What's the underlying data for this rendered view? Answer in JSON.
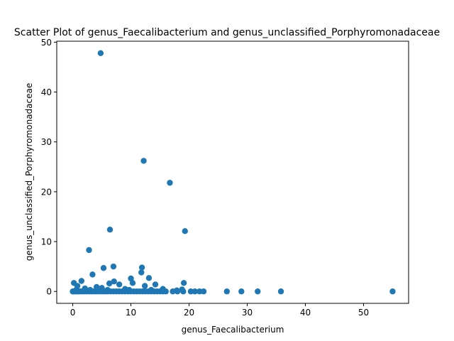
{
  "chart_data": {
    "type": "scatter",
    "title": "Scatter Plot of genus_Faecalibacterium and genus_unclassified_Porphyromonadaceae",
    "xlabel": "genus_Faecalibacterium",
    "ylabel": "genus_unclassified_Porphyromonadaceae",
    "xlim": [
      -2.75,
      57.75
    ],
    "ylim": [
      -2.39,
      50.2
    ],
    "xticks": [
      0,
      10,
      20,
      30,
      40,
      50
    ],
    "yticks": [
      0,
      10,
      20,
      30,
      40,
      50
    ],
    "grid": false,
    "marker_color": "#1f77b4",
    "points": [
      [
        4.8,
        47.8
      ],
      [
        12.2,
        26.2
      ],
      [
        16.7,
        21.8
      ],
      [
        6.4,
        12.4
      ],
      [
        19.3,
        12.1
      ],
      [
        2.8,
        8.3
      ],
      [
        7.0,
        5.0
      ],
      [
        5.3,
        4.7
      ],
      [
        11.9,
        4.8
      ],
      [
        11.8,
        3.8
      ],
      [
        3.4,
        3.4
      ],
      [
        10.0,
        2.6
      ],
      [
        13.1,
        2.7
      ],
      [
        1.5,
        2.1
      ],
      [
        7.1,
        2.0
      ],
      [
        0.2,
        1.7
      ],
      [
        10.3,
        1.7
      ],
      [
        19.1,
        1.7
      ],
      [
        6.3,
        1.6
      ],
      [
        8.0,
        1.4
      ],
      [
        14.2,
        1.4
      ],
      [
        0.8,
        1.1
      ],
      [
        4.1,
        0.9
      ],
      [
        12.4,
        1.1
      ],
      [
        2.1,
        0.6
      ],
      [
        5.0,
        0.7
      ],
      [
        9.0,
        0.5
      ],
      [
        15.5,
        0.5
      ],
      [
        18.8,
        0.4
      ],
      [
        0.6,
        0.3
      ],
      [
        3.0,
        0.3
      ],
      [
        6.0,
        0.3
      ],
      [
        9.7,
        0.3
      ],
      [
        13.5,
        0.3
      ],
      [
        17.9,
        0.2
      ],
      [
        0.0,
        0.0
      ],
      [
        0.1,
        0.0
      ],
      [
        0.3,
        0.0
      ],
      [
        0.5,
        0.0
      ],
      [
        0.8,
        0.0
      ],
      [
        1.0,
        0.0
      ],
      [
        1.3,
        0.0
      ],
      [
        1.6,
        0.0
      ],
      [
        2.0,
        0.0
      ],
      [
        2.4,
        0.0
      ],
      [
        2.8,
        0.0
      ],
      [
        3.2,
        0.0
      ],
      [
        3.6,
        0.0
      ],
      [
        4.0,
        0.0
      ],
      [
        4.4,
        0.0
      ],
      [
        4.8,
        0.0
      ],
      [
        5.2,
        0.0
      ],
      [
        5.6,
        0.0
      ],
      [
        6.0,
        0.0
      ],
      [
        6.5,
        0.0
      ],
      [
        7.0,
        0.0
      ],
      [
        7.5,
        0.0
      ],
      [
        8.0,
        0.0
      ],
      [
        8.5,
        0.0
      ],
      [
        9.0,
        0.0
      ],
      [
        9.5,
        0.0
      ],
      [
        10.0,
        0.0
      ],
      [
        10.5,
        0.0
      ],
      [
        11.0,
        0.0
      ],
      [
        11.5,
        0.0
      ],
      [
        12.0,
        0.0
      ],
      [
        12.5,
        0.0
      ],
      [
        13.0,
        0.0
      ],
      [
        13.5,
        0.0
      ],
      [
        14.0,
        0.0
      ],
      [
        14.5,
        0.0
      ],
      [
        15.0,
        0.0
      ],
      [
        15.5,
        0.0
      ],
      [
        16.0,
        0.0
      ],
      [
        17.2,
        0.0
      ],
      [
        18.0,
        0.0
      ],
      [
        19.0,
        0.0
      ],
      [
        20.3,
        0.0
      ],
      [
        21.0,
        0.0
      ],
      [
        21.8,
        0.0
      ],
      [
        22.5,
        0.0
      ],
      [
        26.5,
        0.0
      ],
      [
        29.0,
        0.0
      ],
      [
        31.8,
        0.0
      ],
      [
        35.8,
        0.0
      ],
      [
        55.0,
        0.0
      ]
    ]
  }
}
